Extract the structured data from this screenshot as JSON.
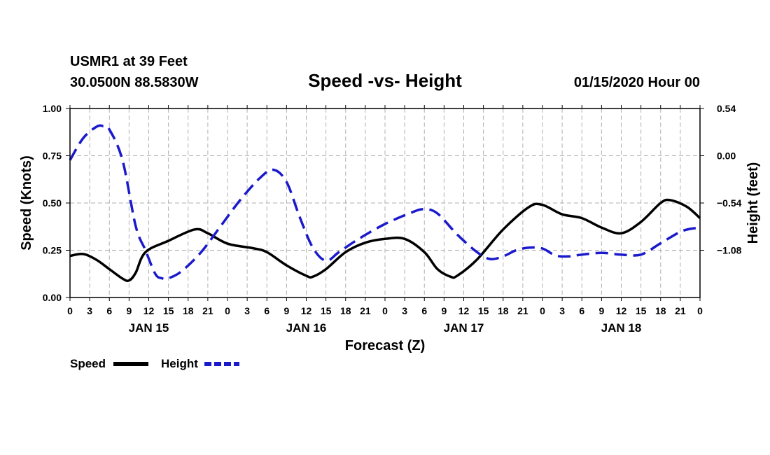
{
  "header": {
    "station": "USMR1 at 39 Feet",
    "coords": "30.0500N 88.5830W",
    "title": "Speed -vs- Height",
    "issued": "01/15/2020 Hour 00"
  },
  "legend": {
    "speed_label": "Speed",
    "height_label": "Height"
  },
  "colors": {
    "speed": "#000000",
    "height": "#1a1acc",
    "grid": "#b0b0b0"
  },
  "chart_data": {
    "type": "line",
    "title": "Speed -vs- Height",
    "xlabel": "Forecast (Z)",
    "ylabel": "Speed (Knots)",
    "y2label": "Height (feet)",
    "x_range_hours": [
      0,
      96
    ],
    "ylim": [
      0,
      1
    ],
    "y2lim": [
      -1.62,
      0.54
    ],
    "y_ticks": [
      "0.00",
      "0.25",
      "0.50",
      "0.75",
      "1.00"
    ],
    "y2_ticks": [
      {
        "value": -1.08,
        "label": "−1.08"
      },
      {
        "value": -0.54,
        "label": "−0.54"
      },
      {
        "value": 0.0,
        "label": "0.00"
      },
      {
        "value": 0.54,
        "label": "0.54"
      }
    ],
    "x_tick_labels": [
      "0",
      "3",
      "6",
      "9",
      "12",
      "15",
      "18",
      "21",
      "0",
      "3",
      "6",
      "9",
      "12",
      "15",
      "18",
      "21",
      "0",
      "3",
      "6",
      "9",
      "12",
      "15",
      "18",
      "21",
      "0",
      "3",
      "6",
      "9",
      "12",
      "15",
      "18",
      "21",
      "0"
    ],
    "day_labels": [
      {
        "hour": 12,
        "label": "JAN 15"
      },
      {
        "hour": 36,
        "label": "JAN 16"
      },
      {
        "hour": 60,
        "label": "JAN 17"
      },
      {
        "hour": 84,
        "label": "JAN 18"
      }
    ],
    "grid": true,
    "legend": "bottom-left",
    "series": [
      {
        "name": "Speed",
        "axis": "left",
        "style": "solid",
        "points": [
          [
            0,
            0.22
          ],
          [
            2,
            0.23
          ],
          [
            4,
            0.2
          ],
          [
            6,
            0.15
          ],
          [
            8,
            0.1
          ],
          [
            9,
            0.09
          ],
          [
            10,
            0.13
          ],
          [
            11.5,
            0.24
          ],
          [
            15,
            0.3
          ],
          [
            19,
            0.36
          ],
          [
            21,
            0.34
          ],
          [
            24,
            0.285
          ],
          [
            28,
            0.26
          ],
          [
            30,
            0.24
          ],
          [
            33,
            0.17
          ],
          [
            36,
            0.115
          ],
          [
            37,
            0.11
          ],
          [
            39,
            0.15
          ],
          [
            42,
            0.24
          ],
          [
            45,
            0.29
          ],
          [
            48,
            0.31
          ],
          [
            51,
            0.31
          ],
          [
            54,
            0.24
          ],
          [
            56,
            0.15
          ],
          [
            58,
            0.11
          ],
          [
            59,
            0.115
          ],
          [
            62,
            0.2
          ],
          [
            66,
            0.36
          ],
          [
            70,
            0.48
          ],
          [
            72,
            0.49
          ],
          [
            75,
            0.44
          ],
          [
            78,
            0.42
          ],
          [
            81,
            0.37
          ],
          [
            84,
            0.34
          ],
          [
            87,
            0.4
          ],
          [
            90,
            0.5
          ],
          [
            91.5,
            0.515
          ],
          [
            94,
            0.48
          ],
          [
            96,
            0.42
          ]
        ]
      },
      {
        "name": "Height",
        "axis": "right",
        "style": "dashed",
        "points": [
          [
            0,
            -0.05
          ],
          [
            2,
            0.2
          ],
          [
            4,
            0.33
          ],
          [
            5,
            0.34
          ],
          [
            6,
            0.3
          ],
          [
            8,
            -0.05
          ],
          [
            10,
            -0.8
          ],
          [
            11.5,
            -1.08
          ],
          [
            13,
            -1.35
          ],
          [
            14,
            -1.4
          ],
          [
            15,
            -1.4
          ],
          [
            17,
            -1.32
          ],
          [
            20,
            -1.1
          ],
          [
            23,
            -0.8
          ],
          [
            26,
            -0.5
          ],
          [
            29,
            -0.25
          ],
          [
            31,
            -0.16
          ],
          [
            33,
            -0.3
          ],
          [
            35,
            -0.7
          ],
          [
            37,
            -1.05
          ],
          [
            39,
            -1.2
          ],
          [
            41,
            -1.1
          ],
          [
            44,
            -0.95
          ],
          [
            48,
            -0.78
          ],
          [
            52,
            -0.65
          ],
          [
            54,
            -0.61
          ],
          [
            56,
            -0.66
          ],
          [
            59,
            -0.9
          ],
          [
            62,
            -1.1
          ],
          [
            64,
            -1.18
          ],
          [
            66,
            -1.15
          ],
          [
            68,
            -1.08
          ],
          [
            70,
            -1.05
          ],
          [
            72,
            -1.06
          ],
          [
            74,
            -1.14
          ],
          [
            76,
            -1.15
          ],
          [
            78,
            -1.13
          ],
          [
            81,
            -1.11
          ],
          [
            84,
            -1.13
          ],
          [
            87,
            -1.13
          ],
          [
            90,
            -1.0
          ],
          [
            93,
            -0.87
          ],
          [
            95,
            -0.83
          ],
          [
            96,
            -0.84
          ]
        ]
      }
    ]
  }
}
